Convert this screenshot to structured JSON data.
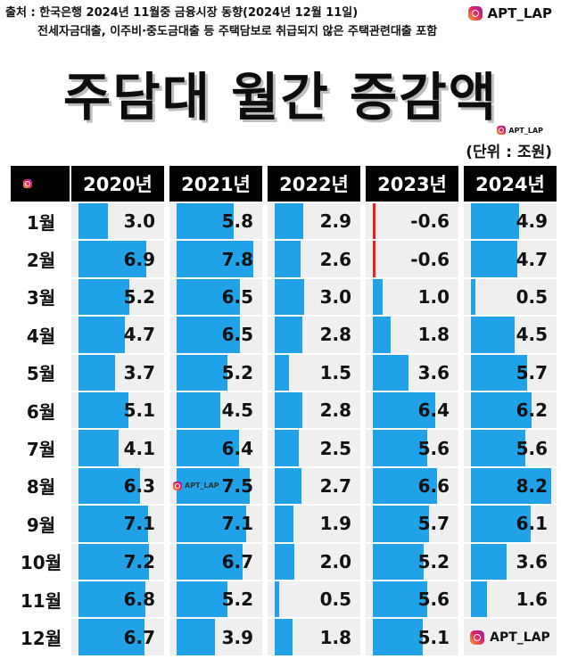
{
  "source": {
    "line1": "출처 : 한국은행  2024년 11월중 금융시장 동향(2024년 12월 11일)",
    "line2": "전세자금대출, 이주비·중도금대출 등 주택담보로 취급되지 않은 주택관련대출 포함"
  },
  "brand": {
    "handle": "APT_LAP",
    "icon": "instagram-icon"
  },
  "mini_brand": "APT_LAP",
  "unit": "(단위 : 조원)",
  "chart_data": {
    "type": "table",
    "title": "주담대 월간 증감액",
    "columns": [
      "2020년",
      "2021년",
      "2022년",
      "2023년",
      "2024년"
    ],
    "rows": [
      "1월",
      "2월",
      "3월",
      "4월",
      "5월",
      "6월",
      "7월",
      "8월",
      "9월",
      "10월",
      "11월",
      "12월"
    ],
    "values": [
      [
        3.0,
        5.8,
        2.9,
        -0.6,
        4.9
      ],
      [
        6.9,
        7.8,
        2.6,
        -0.6,
        4.7
      ],
      [
        5.2,
        6.5,
        3.0,
        1.0,
        0.5
      ],
      [
        4.7,
        6.5,
        2.8,
        1.8,
        4.5
      ],
      [
        3.7,
        5.2,
        1.5,
        3.6,
        5.7
      ],
      [
        5.1,
        4.5,
        2.8,
        6.4,
        6.2
      ],
      [
        4.1,
        6.4,
        2.5,
        5.6,
        5.6
      ],
      [
        6.3,
        7.5,
        2.7,
        6.6,
        8.2
      ],
      [
        7.1,
        7.1,
        1.9,
        5.7,
        6.1
      ],
      [
        7.2,
        6.7,
        2.0,
        5.2,
        3.6
      ],
      [
        6.8,
        5.2,
        0.5,
        5.6,
        1.6
      ],
      [
        6.7,
        3.9,
        1.8,
        5.1,
        null
      ]
    ],
    "labels": [
      [
        "3.0",
        "5.8",
        "2.9",
        "-0.6",
        "4.9"
      ],
      [
        "6.9",
        "7.8",
        "2.6",
        "-0.6",
        "4.7"
      ],
      [
        "5.2",
        "6.5",
        "3.0",
        "1.0",
        "0.5"
      ],
      [
        "4.7",
        "6.5",
        "2.8",
        "1.8",
        "4.5"
      ],
      [
        "3.7",
        "5.2",
        "1.5",
        "3.6",
        "5.7"
      ],
      [
        "5.1",
        "4.5",
        "2.8",
        "6.4",
        "6.2"
      ],
      [
        "4.1",
        "6.4",
        "2.5",
        "5.6",
        "5.6"
      ],
      [
        "6.3",
        "7.5",
        "2.7",
        "6.6",
        "8.2"
      ],
      [
        "7.1",
        "7.1",
        "1.9",
        "5.7",
        "6.1"
      ],
      [
        "7.2",
        "6.7",
        "2.0",
        "5.2",
        "3.6"
      ],
      [
        "6.8",
        "5.2",
        "0.5",
        "5.6",
        "1.6"
      ],
      [
        "6.7",
        "3.9",
        "1.8",
        "5.1",
        ""
      ]
    ],
    "bar_max": 8.2,
    "colors": {
      "positive": "#1fa2e8",
      "negative": "#e52222",
      "cell": "#efefef",
      "header": "#000000"
    }
  },
  "watermarks": {
    "cell_watermark": "APT_LAP",
    "corner_watermark": "APT_LAP"
  }
}
